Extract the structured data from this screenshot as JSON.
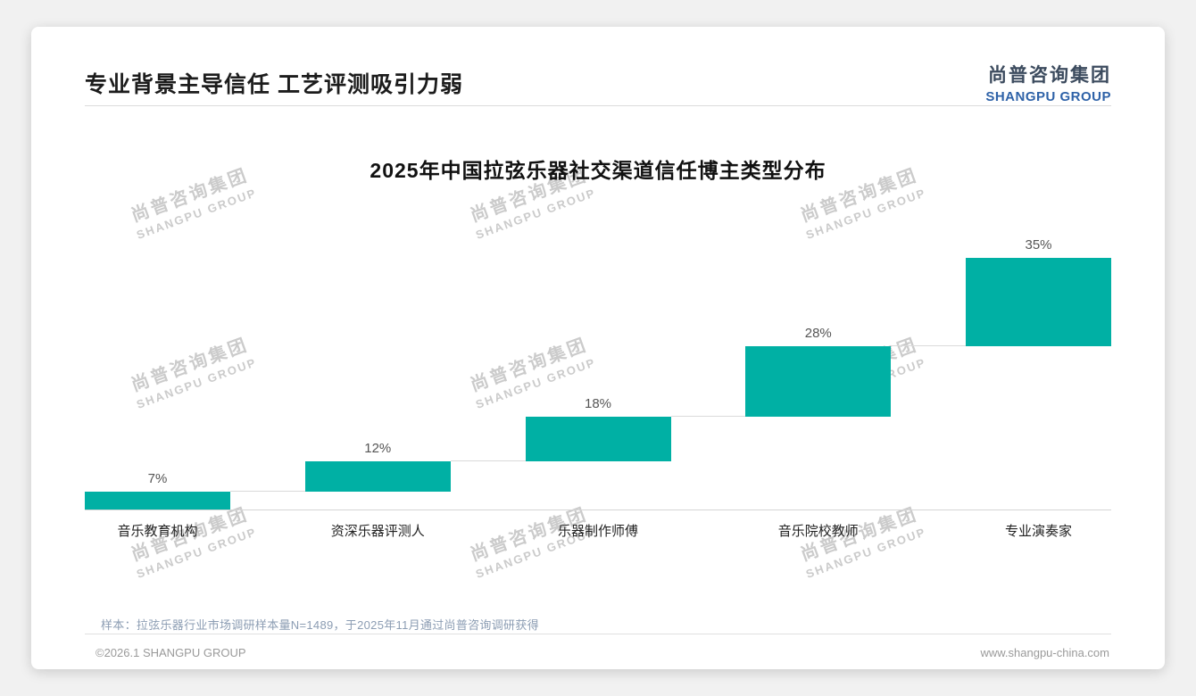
{
  "page": {
    "title": "专业背景主导信任 工艺评测吸引力弱",
    "logo": {
      "cn": "尚普咨询集团",
      "en": "SHANGPU GROUP"
    },
    "note": "样本：拉弦乐器行业市场调研样本量N=1489，于2025年11月通过尚普咨询调研获得",
    "footer": {
      "left": "©2026.1 SHANGPU GROUP",
      "right": "www.shangpu-china.com"
    }
  },
  "watermark": {
    "cn": "尚普咨询集团",
    "en": "SHANGPU GROUP"
  },
  "colors": {
    "bar": "#00B0A4",
    "brand_blue": "#2E62A8"
  },
  "chart_data": {
    "type": "bar",
    "variant": "waterfall",
    "title": "2025年中国拉弦乐器社交渠道信任博主类型分布",
    "categories": [
      "音乐教育机构",
      "资深乐器评测人",
      "乐器制作师傅",
      "音乐院校教师",
      "专业演奏家"
    ],
    "values": [
      7,
      12,
      18,
      28,
      35
    ],
    "value_labels": [
      "7%",
      "12%",
      "18%",
      "28%",
      "35%"
    ],
    "cumulative": [
      7,
      19,
      37,
      65,
      100
    ],
    "bar_color": "#00B0A4",
    "xlabel": "",
    "ylabel": "",
    "ylim": [
      0,
      100
    ],
    "grid": false,
    "legend": "none"
  }
}
